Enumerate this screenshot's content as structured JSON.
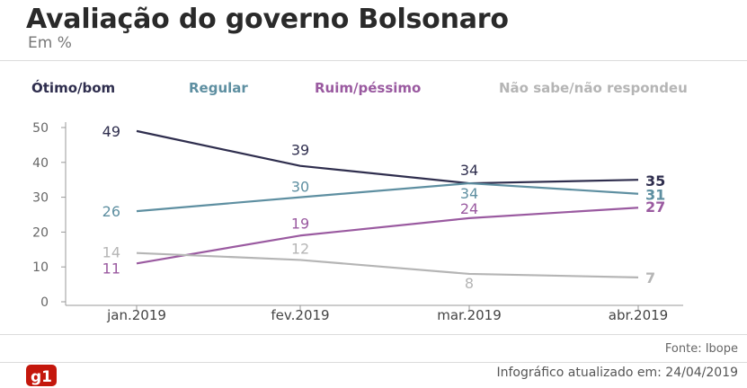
{
  "legend": [
    "Ótimo/bom",
    "Regular",
    "Ruim/péssimo",
    "Não sabe/não respondeu"
  ],
  "footer": {
    "source": "Fonte: Ibope",
    "updated": "Infográfico atualizado em: 24/04/2019"
  },
  "logo_text": "g1",
  "chart_data": {
    "type": "line",
    "title": "Avaliação do governo Bolsonaro",
    "subtitle": "Em %",
    "xlabel": "",
    "ylabel": "",
    "categories": [
      "jan.2019",
      "fev.2019",
      "mar.2019",
      "abr.2019"
    ],
    "yticks": [
      0,
      10,
      20,
      30,
      40,
      50
    ],
    "ylim": [
      0,
      50
    ],
    "grid": false,
    "legend_position": "top",
    "series": [
      {
        "name": "Ótimo/bom",
        "values": [
          49,
          39,
          34,
          35
        ],
        "color": "#2f2e4e"
      },
      {
        "name": "Regular",
        "values": [
          26,
          30,
          34,
          31
        ],
        "color": "#5e8fa1"
      },
      {
        "name": "Ruim/péssimo",
        "values": [
          11,
          19,
          24,
          27
        ],
        "color": "#9a5aa0"
      },
      {
        "name": "Não sabe/não respondeu",
        "values": [
          14,
          12,
          8,
          7
        ],
        "color": "#b5b5b5"
      }
    ]
  }
}
